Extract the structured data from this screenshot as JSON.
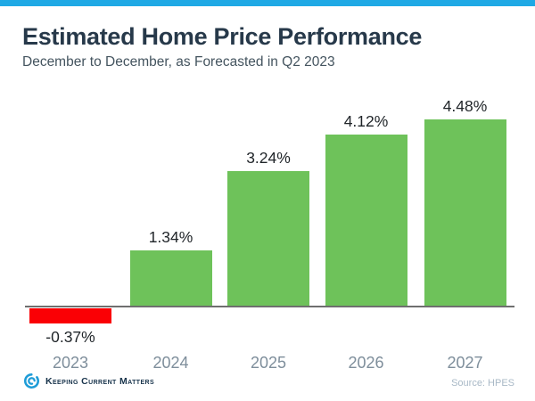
{
  "header": {
    "title": "Estimated Home Price Performance",
    "subtitle": "December to December, as Forecasted in Q2 2023"
  },
  "chart_data": {
    "type": "bar",
    "categories": [
      "2023",
      "2024",
      "2025",
      "2026",
      "2027"
    ],
    "values": [
      -0.37,
      1.34,
      3.24,
      4.12,
      4.48
    ],
    "value_labels": [
      "-0.37%",
      "1.34%",
      "3.24%",
      "4.12%",
      "4.48%"
    ],
    "title": "Estimated Home Price Performance",
    "subtitle": "December to December, as Forecasted in Q2 2023",
    "xlabel": "",
    "ylabel": "",
    "ylim": [
      -1,
      5
    ],
    "grid": false,
    "legend": false,
    "positive_color": "#6ec25a",
    "negative_color": "#fa0005"
  },
  "footer": {
    "brand": "Keeping Current Matters",
    "source": "Source: HPES"
  },
  "colors": {
    "accent_blue": "#1fa9e5",
    "axis_gray": "#6f6f6f",
    "title_navy": "#27394a",
    "year_label_gray": "#7e8e9b",
    "source_gray": "#a8b8c6",
    "logo_blue": "#1e9cd7"
  }
}
